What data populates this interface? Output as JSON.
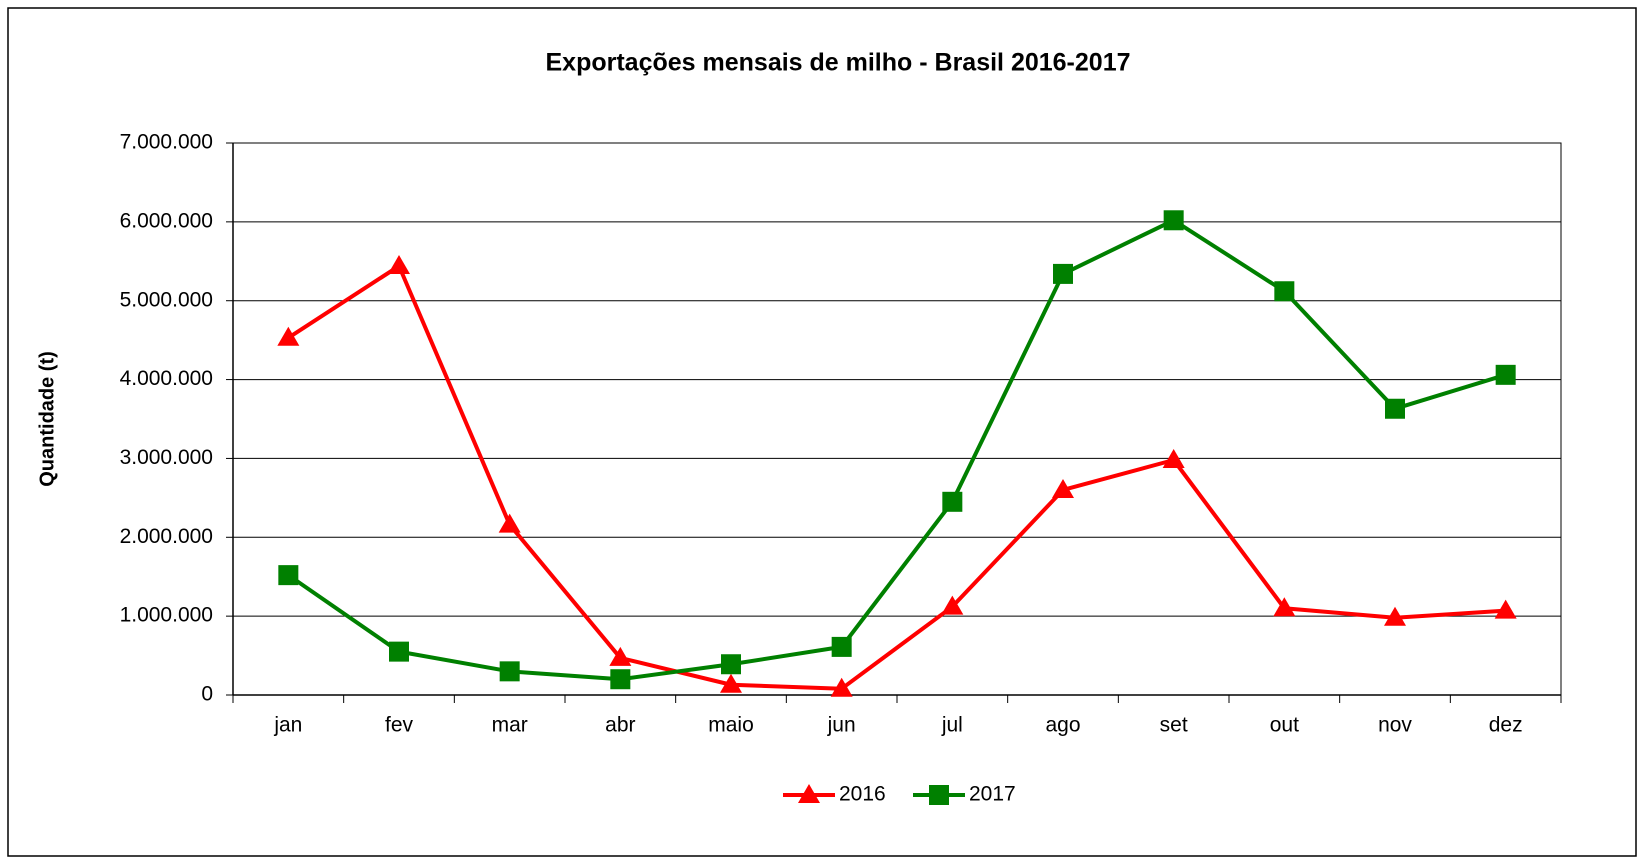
{
  "chart_data": {
    "type": "line",
    "title": "Exportações mensais de milho - Brasil 2016-2017",
    "y_label": "Quantidade (t)",
    "categories": [
      "jan",
      "fev",
      "mar",
      "abr",
      "maio",
      "jun",
      "jul",
      "ago",
      "set",
      "out",
      "nov",
      "dez"
    ],
    "series": [
      {
        "name": "2016",
        "color": "#ff0000",
        "marker": "triangle",
        "values": [
          4530000,
          5440000,
          2160000,
          470000,
          130000,
          80000,
          1120000,
          2600000,
          2980000,
          1100000,
          980000,
          1070000
        ]
      },
      {
        "name": "2017",
        "color": "#008000",
        "marker": "square",
        "values": [
          1520000,
          550000,
          300000,
          200000,
          390000,
          610000,
          2450000,
          5340000,
          6020000,
          5120000,
          3630000,
          4060000
        ]
      }
    ],
    "ylim": [
      0,
      7000000
    ],
    "yticks": [
      0,
      {
        "value": 1000000,
        "label": "1.000.000"
      },
      {
        "value": 2000000,
        "label": "2.000.000"
      },
      {
        "value": 3000000,
        "label": "3.000.000"
      },
      {
        "value": 4000000,
        "label": "4.000.000"
      },
      {
        "value": 5000000,
        "label": "5.000.000"
      },
      {
        "value": 6000000,
        "label": "6.000.000"
      },
      {
        "value": 7000000,
        "label": "7.000.000"
      }
    ],
    "grid": true,
    "legend": "bottom"
  }
}
